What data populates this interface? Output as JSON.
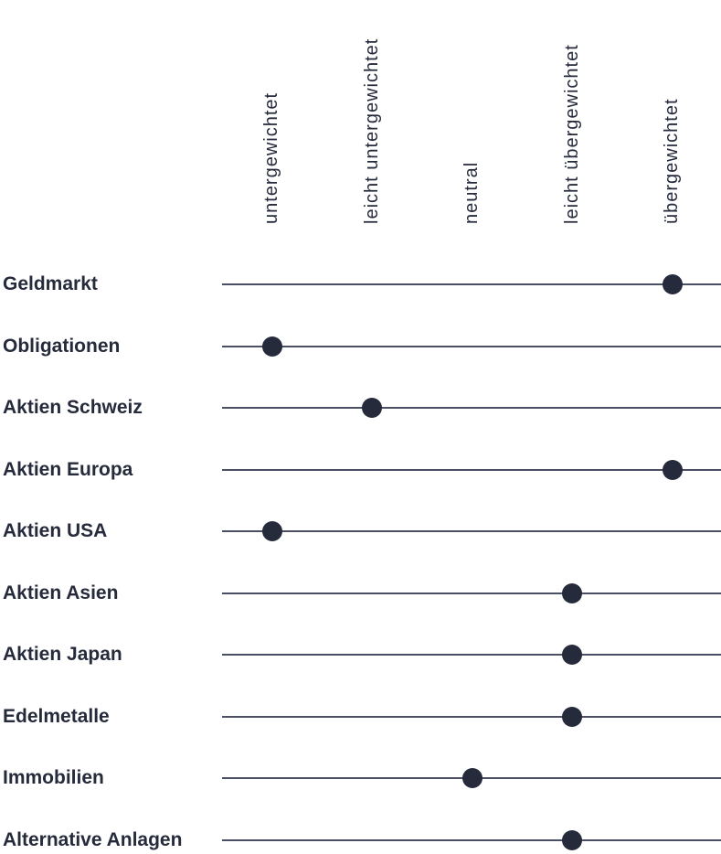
{
  "chart_data": {
    "type": "scatter",
    "subtype": "dot-position-scale",
    "title": "",
    "scale_labels": [
      "untergewichtet",
      "leicht untergewichtet",
      "neutral",
      "leicht übergewichtet",
      "übergewichtet"
    ],
    "rows": [
      {
        "label": "Geldmarkt",
        "position": "übergewichtet",
        "position_index": 4
      },
      {
        "label": "Obligationen",
        "position": "untergewichtet",
        "position_index": 0
      },
      {
        "label": "Aktien Schweiz",
        "position": "leicht untergewichtet",
        "position_index": 1
      },
      {
        "label": "Aktien Europa",
        "position": "übergewichtet",
        "position_index": 4
      },
      {
        "label": "Aktien USA",
        "position": "untergewichtet",
        "position_index": 0
      },
      {
        "label": "Aktien Asien",
        "position": "leicht übergewichtet",
        "position_index": 3
      },
      {
        "label": "Aktien Japan",
        "position": "leicht übergewichtet",
        "position_index": 3
      },
      {
        "label": "Edelmetalle",
        "position": "leicht übergewichtet",
        "position_index": 3
      },
      {
        "label": "Immobilien",
        "position": "neutral",
        "position_index": 2
      },
      {
        "label": "Alternative Anlagen",
        "position": "leicht übergewichtet",
        "position_index": 3
      }
    ],
    "colors": {
      "dot": "#262b3c",
      "line": "#4a4f63",
      "text": "#262b3c"
    },
    "grid": false,
    "legend_position": "top-rotated",
    "scale_range": [
      "untergewichtet",
      "übergewichtet"
    ]
  }
}
